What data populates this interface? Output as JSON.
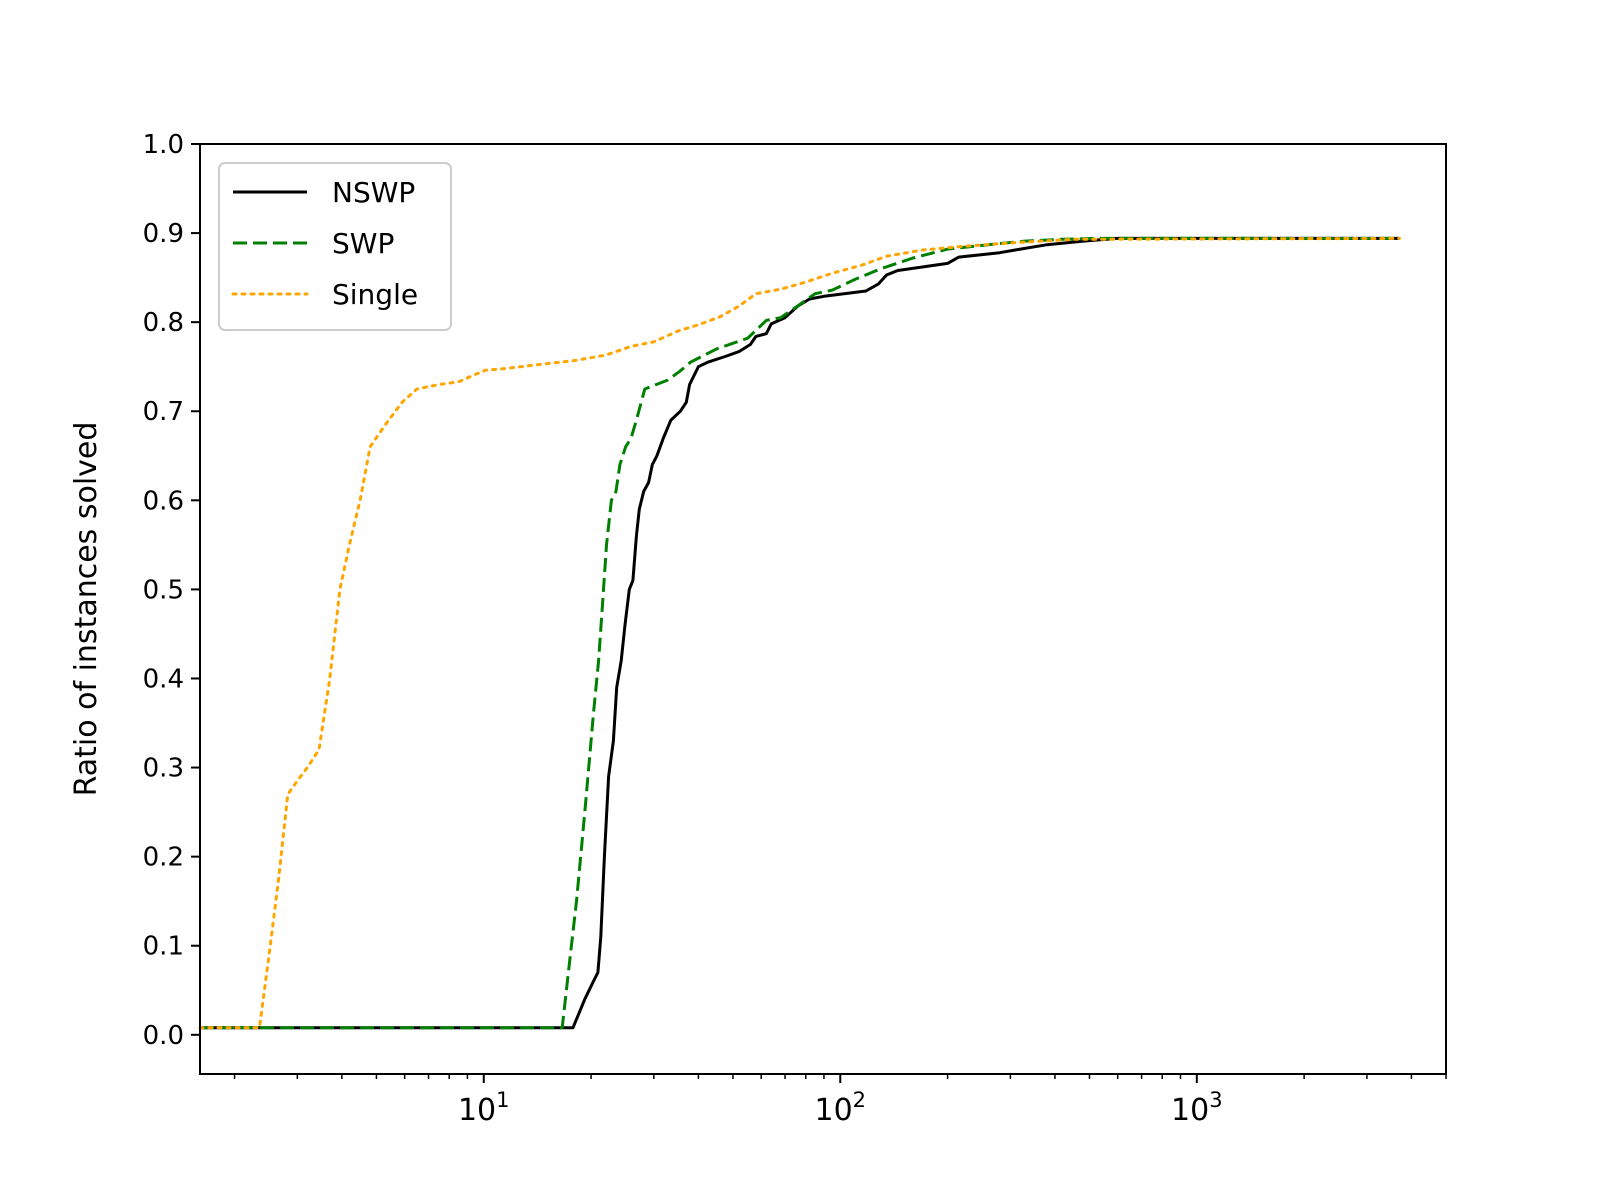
{
  "chart_data": {
    "type": "line",
    "title": "",
    "xlabel": "",
    "ylabel": "Ratio of instances solved",
    "x_scale": "log",
    "xlim": [
      1.6,
      5000
    ],
    "ylim": [
      -0.044,
      1.0
    ],
    "x_ticks": [
      {
        "base": "10",
        "exp": "1",
        "value": 10
      },
      {
        "base": "10",
        "exp": "2",
        "value": 100
      },
      {
        "base": "10",
        "exp": "3",
        "value": 1000
      }
    ],
    "y_ticks": [
      "0.0",
      "0.1",
      "0.2",
      "0.3",
      "0.4",
      "0.5",
      "0.6",
      "0.7",
      "0.8",
      "0.9",
      "1.0"
    ],
    "grid": false,
    "legend": "top-left",
    "series": [
      {
        "name": "NSWP",
        "color": "#000000",
        "style": "solid",
        "points": [
          [
            1.6,
            0.008
          ],
          [
            17.8,
            0.008
          ],
          [
            19.2,
            0.04
          ],
          [
            20.3,
            0.06
          ],
          [
            20.9,
            0.07
          ],
          [
            21.3,
            0.11
          ],
          [
            21.8,
            0.2
          ],
          [
            22.4,
            0.29
          ],
          [
            23.1,
            0.33
          ],
          [
            23.6,
            0.39
          ],
          [
            24.3,
            0.42
          ],
          [
            24.9,
            0.46
          ],
          [
            25.6,
            0.5
          ],
          [
            26.2,
            0.51
          ],
          [
            26.8,
            0.56
          ],
          [
            27.3,
            0.59
          ],
          [
            28.1,
            0.61
          ],
          [
            29.0,
            0.62
          ],
          [
            29.7,
            0.64
          ],
          [
            30.6,
            0.65
          ],
          [
            31.9,
            0.67
          ],
          [
            33.5,
            0.69
          ],
          [
            35.6,
            0.7
          ],
          [
            37.0,
            0.71
          ],
          [
            37.8,
            0.73
          ],
          [
            40.0,
            0.75
          ],
          [
            42.5,
            0.755
          ],
          [
            48.0,
            0.762
          ],
          [
            52.0,
            0.767
          ],
          [
            56.0,
            0.775
          ],
          [
            58.0,
            0.784
          ],
          [
            62.0,
            0.787
          ],
          [
            64.0,
            0.798
          ],
          [
            70.0,
            0.805
          ],
          [
            76.0,
            0.818
          ],
          [
            82.0,
            0.826
          ],
          [
            90.0,
            0.829
          ],
          [
            118.0,
            0.835
          ],
          [
            128.0,
            0.843
          ],
          [
            135.0,
            0.853
          ],
          [
            145.0,
            0.858
          ],
          [
            200.0,
            0.866
          ],
          [
            215.0,
            0.873
          ],
          [
            280.0,
            0.878
          ],
          [
            320.0,
            0.882
          ],
          [
            380.0,
            0.887
          ],
          [
            480.0,
            0.891
          ],
          [
            600.0,
            0.894
          ],
          [
            3700.0,
            0.894
          ]
        ]
      },
      {
        "name": "SWP",
        "color": "#008000",
        "style": "dashed",
        "points": [
          [
            1.6,
            0.008
          ],
          [
            16.6,
            0.008
          ],
          [
            17.5,
            0.09
          ],
          [
            18.2,
            0.15
          ],
          [
            18.8,
            0.21
          ],
          [
            19.3,
            0.26
          ],
          [
            19.8,
            0.31
          ],
          [
            20.3,
            0.36
          ],
          [
            21.0,
            0.42
          ],
          [
            21.5,
            0.48
          ],
          [
            22.1,
            0.55
          ],
          [
            22.8,
            0.6
          ],
          [
            23.5,
            0.61
          ],
          [
            24.1,
            0.64
          ],
          [
            25.0,
            0.66
          ],
          [
            25.9,
            0.67
          ],
          [
            26.8,
            0.69
          ],
          [
            28.3,
            0.725
          ],
          [
            30.5,
            0.73
          ],
          [
            32.8,
            0.735
          ],
          [
            35.5,
            0.745
          ],
          [
            38.0,
            0.755
          ],
          [
            45.0,
            0.77
          ],
          [
            55.0,
            0.782
          ],
          [
            62.0,
            0.802
          ],
          [
            68.0,
            0.805
          ],
          [
            74.0,
            0.815
          ],
          [
            85.0,
            0.832
          ],
          [
            95.0,
            0.836
          ],
          [
            110.0,
            0.848
          ],
          [
            130.0,
            0.86
          ],
          [
            160.0,
            0.872
          ],
          [
            200.0,
            0.882
          ],
          [
            260.0,
            0.887
          ],
          [
            330.0,
            0.891
          ],
          [
            420.0,
            0.893
          ],
          [
            520.0,
            0.894
          ],
          [
            3700.0,
            0.894
          ]
        ]
      },
      {
        "name": "Single",
        "color": "#FFA500",
        "style": "dotted",
        "points": [
          [
            1.6,
            0.008
          ],
          [
            2.35,
            0.008
          ],
          [
            2.5,
            0.09
          ],
          [
            2.65,
            0.17
          ],
          [
            2.82,
            0.27
          ],
          [
            3.0,
            0.285
          ],
          [
            3.2,
            0.3
          ],
          [
            3.45,
            0.32
          ],
          [
            3.7,
            0.4
          ],
          [
            3.95,
            0.5
          ],
          [
            4.2,
            0.55
          ],
          [
            4.5,
            0.6
          ],
          [
            4.8,
            0.66
          ],
          [
            5.3,
            0.685
          ],
          [
            5.9,
            0.71
          ],
          [
            6.5,
            0.725
          ],
          [
            7.5,
            0.73
          ],
          [
            8.5,
            0.733
          ],
          [
            9.3,
            0.74
          ],
          [
            10.1,
            0.746
          ],
          [
            11.5,
            0.748
          ],
          [
            14.0,
            0.752
          ],
          [
            18.0,
            0.757
          ],
          [
            22.0,
            0.763
          ],
          [
            26.0,
            0.773
          ],
          [
            30.0,
            0.778
          ],
          [
            35.0,
            0.79
          ],
          [
            40.0,
            0.797
          ],
          [
            46.0,
            0.806
          ],
          [
            52.0,
            0.818
          ],
          [
            58.0,
            0.832
          ],
          [
            68.0,
            0.837
          ],
          [
            80.0,
            0.845
          ],
          [
            95.0,
            0.855
          ],
          [
            115.0,
            0.864
          ],
          [
            135.0,
            0.874
          ],
          [
            170.0,
            0.881
          ],
          [
            220.0,
            0.885
          ],
          [
            300.0,
            0.889
          ],
          [
            450.0,
            0.893
          ],
          [
            3700.0,
            0.894
          ]
        ]
      }
    ]
  }
}
